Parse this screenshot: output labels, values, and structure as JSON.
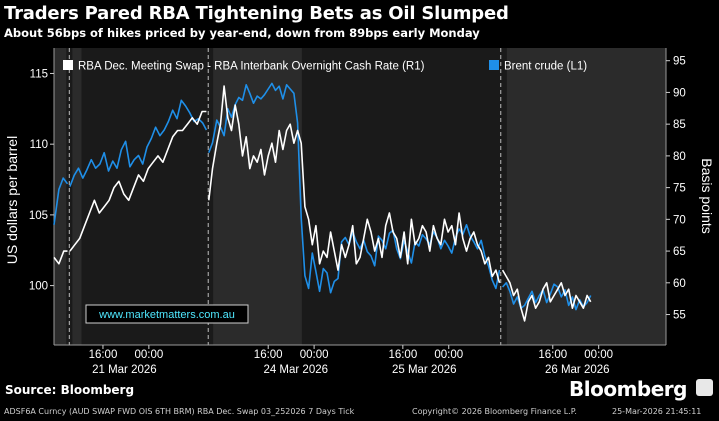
{
  "header": {
    "title": "Traders Pared RBA Tightening Bets as Oil Slumped",
    "subtitle": "About 56bps of hikes priced by year-end, down from 89bps early Monday"
  },
  "footer": {
    "source": "Source: Bloomberg",
    "brand": "Bloomberg",
    "ticker_text": "ADSF6A Curncy (AUD SWAP FWD OIS 6TH BRM) RBA Dec. Swap 03_252026 7 Days Tick",
    "copyright": "Copyright© 2026 Bloomberg Finance L.P.",
    "timestamp": "25-Mar-2026 21:45:11"
  },
  "watermark": "www.marketmatters.com.au",
  "colors": {
    "background": "#000000",
    "plot_background": "#1a1a1a",
    "shaded_band": "#2b2b2b",
    "rba_series": "#ffffff",
    "brent_series": "#1f8fe8",
    "watermark_text": "#4fe8ff"
  },
  "chart_data": {
    "type": "line",
    "title": "Traders Pared RBA Tightening Bets as Oil Slumped",
    "x_range": [
      0,
      100
    ],
    "x_ticks": [
      {
        "x": 8.0,
        "label": "16:00"
      },
      {
        "x": 15.5,
        "label": "00:00"
      },
      {
        "x": 35.0,
        "label": "16:00"
      },
      {
        "x": 42.5,
        "label": "00:00"
      },
      {
        "x": 57.0,
        "label": "16:00"
      },
      {
        "x": 64.5,
        "label": "00:00"
      },
      {
        "x": 81.5,
        "label": "16:00"
      },
      {
        "x": 89.0,
        "label": "00:00"
      }
    ],
    "x_date_labels": [
      {
        "x": 11.5,
        "label": "21 Mar 2026"
      },
      {
        "x": 39.5,
        "label": "24 Mar 2026"
      },
      {
        "x": 60.5,
        "label": "25 Mar 2026"
      },
      {
        "x": 85.5,
        "label": "26 Mar 2026"
      }
    ],
    "session_dividers": [
      2.5,
      25.2,
      73.0
    ],
    "shaded_bands": [
      [
        0,
        2.0
      ],
      [
        3.0,
        4.5
      ],
      [
        26.0,
        40.5
      ],
      [
        74.0,
        100
      ]
    ],
    "left_axis": {
      "label": "US dollars per barrel",
      "range": [
        95.8,
        116.8
      ],
      "ticks": [
        100,
        105,
        110,
        115
      ]
    },
    "right_axis": {
      "label": "Basis points",
      "range": [
        50.2,
        97
      ],
      "ticks": [
        55,
        60,
        65,
        70,
        75,
        80,
        85,
        90,
        95
      ]
    },
    "legend": {
      "position": "top"
    },
    "series": [
      {
        "name": "RBA Dec. Meeting Swap - RBA Interbank Overnight Cash Rate (R1)",
        "axis": "right",
        "segments": [
          {
            "x": [
              0.0,
              0.8,
              1.6,
              2.2
            ],
            "values": [
              64,
              63,
              65,
              65
            ]
          },
          {
            "x": [
              2.6,
              3.4,
              4.2,
              5.0,
              5.8,
              6.6,
              7.4,
              8.2,
              9.0,
              9.8,
              10.6,
              11.4,
              12.2,
              13.0,
              13.8,
              14.6,
              15.4,
              16.2,
              17.0,
              17.8,
              18.6,
              19.4,
              20.2,
              21.0,
              21.8,
              22.6,
              23.4,
              24.2,
              24.9
            ],
            "values": [
              65,
              66,
              67,
              69,
              71,
              73,
              71,
              72,
              73,
              75,
              76,
              74,
              73,
              75,
              77,
              76,
              78,
              79,
              80,
              79,
              81,
              83,
              84,
              84,
              85,
              86,
              85,
              87,
              87
            ]
          },
          {
            "x": [
              25.3,
              25.9,
              26.6,
              27.2,
              27.8,
              28.4,
              29.0,
              29.6,
              30.2,
              30.8,
              31.4,
              32.0,
              32.6,
              33.2,
              33.8,
              34.4,
              35.0,
              35.6,
              36.2,
              36.8,
              37.4,
              38.0,
              38.6,
              39.2,
              39.8,
              40.4,
              41.0,
              41.6,
              42.2,
              42.8,
              43.4,
              44.0,
              44.6,
              45.2,
              45.8,
              46.4,
              47.0,
              47.6,
              48.2,
              48.8,
              49.4,
              50.0,
              50.6,
              51.2,
              51.8,
              52.4,
              53.0,
              53.6,
              54.2,
              54.8,
              55.4,
              56.0,
              56.6,
              57.2,
              57.8,
              58.4,
              59.0,
              59.6,
              60.2,
              60.8,
              61.4,
              62.0,
              62.6,
              63.2,
              63.8,
              64.4,
              65.0,
              65.6,
              66.2,
              66.8,
              67.4,
              68.0,
              68.6,
              69.2,
              69.8,
              70.4,
              71.0,
              71.6,
              72.2,
              72.8
            ],
            "values": [
              73,
              78,
              82,
              85,
              91,
              86,
              84,
              88,
              85,
              80,
              83,
              78,
              80,
              79,
              81,
              77,
              80,
              82,
              79,
              84,
              81,
              84,
              85,
              82,
              84,
              82,
              72,
              70,
              66,
              69,
              63,
              65,
              64,
              68,
              65,
              62,
              66,
              64,
              66,
              69,
              63,
              64,
              67,
              70,
              68,
              65,
              67,
              64,
              69,
              71,
              68,
              67,
              64,
              68,
              63,
              70,
              66,
              67,
              69,
              68,
              65,
              69,
              67,
              66,
              70,
              68,
              69,
              66,
              71,
              67,
              65,
              67,
              68,
              66,
              65,
              63,
              64,
              61,
              62,
              60
            ]
          },
          {
            "x": [
              73.3,
              73.9,
              74.5,
              75.1,
              75.7,
              76.3,
              76.9,
              77.5,
              78.1,
              78.7,
              79.3,
              79.9,
              80.5,
              81.1,
              81.7,
              82.3,
              82.9,
              83.5,
              84.1,
              84.7,
              85.3,
              85.9,
              86.5,
              87.1,
              87.7
            ],
            "values": [
              62,
              61,
              60,
              58,
              59,
              56,
              54,
              57,
              58,
              56,
              57,
              59,
              60,
              57,
              58,
              59,
              60,
              58,
              59,
              56,
              58,
              57,
              56,
              58,
              57
            ]
          }
        ]
      },
      {
        "name": "Brent crude  (L1)",
        "axis": "left",
        "segments": [
          {
            "x": [
              0.0,
              0.8,
              1.5,
              2.2
            ],
            "values": [
              104.3,
              106.8,
              107.6,
              107.2
            ]
          },
          {
            "x": [
              2.6,
              3.3,
              4.0,
              4.7,
              5.4,
              6.1,
              6.8,
              7.5,
              8.2,
              8.9,
              9.6,
              10.3,
              11.0,
              11.7,
              12.4,
              13.1,
              13.8,
              14.5,
              15.2,
              15.9,
              16.6,
              17.3,
              18.0,
              18.7,
              19.4,
              20.1,
              20.8,
              21.5,
              22.2,
              22.9,
              23.6,
              24.3,
              24.9
            ],
            "values": [
              107.0,
              107.8,
              108.3,
              107.6,
              108.2,
              108.9,
              108.3,
              108.6,
              109.4,
              108.1,
              108.8,
              108.3,
              109.6,
              110.2,
              108.4,
              108.9,
              109.2,
              108.6,
              109.8,
              110.4,
              111.2,
              110.6,
              111.0,
              111.6,
              112.4,
              111.8,
              113.1,
              112.7,
              112.2,
              111.6,
              111.8,
              111.5,
              111.0
            ]
          },
          {
            "x": [
              25.3,
              25.9,
              26.6,
              27.2,
              27.8,
              28.4,
              29.0,
              29.6,
              30.2,
              30.8,
              31.4,
              32.0,
              32.6,
              33.2,
              33.8,
              34.4,
              35.0,
              35.6,
              36.2,
              36.8,
              37.4,
              38.0,
              38.6,
              39.2,
              39.8,
              40.4,
              41.0,
              41.6,
              42.2,
              42.8,
              43.4,
              44.0,
              44.6,
              45.2,
              45.8,
              46.4,
              47.0,
              47.6,
              48.2,
              48.8,
              49.4,
              50.0,
              50.6,
              51.2,
              51.8,
              52.4,
              53.0,
              53.6,
              54.2,
              54.8,
              55.4,
              56.0,
              56.6,
              57.2,
              57.8,
              58.4,
              59.0,
              59.6,
              60.2,
              60.8,
              61.4,
              62.0,
              62.6,
              63.2,
              63.8,
              64.4,
              65.0,
              65.6,
              66.2,
              66.8,
              67.4,
              68.0,
              68.6,
              69.2,
              69.8,
              70.4,
              71.0,
              71.6,
              72.2,
              72.8
            ],
            "values": [
              109.4,
              110.1,
              111.7,
              111.2,
              110.6,
              112.5,
              111.9,
              112.8,
              113.3,
              113.1,
              114.2,
              113.6,
              112.9,
              113.4,
              113.2,
              113.5,
              113.9,
              114.3,
              113.8,
              114.1,
              113.2,
              114.2,
              113.9,
              113.6,
              111.5,
              104.8,
              100.7,
              99.8,
              102.3,
              101.0,
              99.6,
              101.2,
              100.9,
              99.5,
              100.3,
              100.5,
              103.1,
              103.4,
              102.9,
              103.8,
              103.1,
              102.6,
              103.2,
              102.4,
              102.1,
              101.4,
              103.5,
              103.2,
              102.6,
              103.7,
              103.9,
              102.6,
              101.9,
              103.2,
              102.4,
              101.6,
              103.1,
              102.8,
              103.6,
              103.3,
              102.9,
              103.8,
              103.4,
              102.6,
              103.2,
              102.8,
              102.3,
              103.4,
              104.0,
              103.6,
              104.3,
              103.5,
              103.1,
              102.6,
              103.2,
              102.1,
              101.4,
              100.4,
              99.8,
              101.1
            ]
          },
          {
            "x": [
              73.3,
              73.9,
              74.5,
              75.1,
              75.7,
              76.3,
              76.9,
              77.5,
              78.1,
              78.7,
              79.3,
              79.9,
              80.5,
              81.1,
              81.7,
              82.3,
              82.9,
              83.5,
              84.1,
              84.7,
              85.3,
              85.9,
              86.5,
              87.1,
              87.7
            ],
            "values": [
              99.9,
              100.2,
              99.6,
              98.7,
              99.2,
              98.4,
              98.6,
              99.1,
              99.6,
              98.8,
              99.3,
              99.7,
              98.8,
              99.4,
              100.1,
              99.9,
              99.2,
              99.7,
              98.6,
              99.2,
              98.3,
              99.0,
              98.5,
              98.8,
              99.3
            ]
          }
        ]
      }
    ]
  }
}
